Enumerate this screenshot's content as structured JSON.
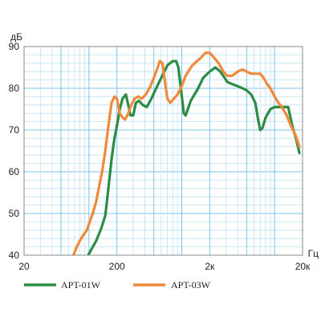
{
  "chart_data": {
    "type": "line",
    "y_unit": "дБ",
    "x_unit": "Гц",
    "xscale": "log",
    "xlim": [
      20,
      20000
    ],
    "ylim": [
      40,
      90
    ],
    "grid": true,
    "x_ticks": [
      {
        "value": 20,
        "label": "20"
      },
      {
        "value": 200,
        "label": "200"
      },
      {
        "value": 2000,
        "label": "2к"
      },
      {
        "value": 20000,
        "label": "20к"
      }
    ],
    "y_ticks": [
      {
        "value": 40,
        "label": "40"
      },
      {
        "value": 50,
        "label": "50"
      },
      {
        "value": 60,
        "label": "60"
      },
      {
        "value": 70,
        "label": "70"
      },
      {
        "value": 80,
        "label": "80"
      },
      {
        "value": 90,
        "label": "90"
      }
    ],
    "legend_position": "bottom",
    "series": [
      {
        "name": "APT-01W",
        "color": "#2e8b45",
        "points": [
          [
            98,
            40
          ],
          [
            107,
            41.5
          ],
          [
            120,
            43.5
          ],
          [
            136,
            46.5
          ],
          [
            150,
            49.5
          ],
          [
            160,
            55
          ],
          [
            175,
            63
          ],
          [
            188,
            68
          ],
          [
            200,
            71
          ],
          [
            215,
            75
          ],
          [
            230,
            77.5
          ],
          [
            250,
            78.5
          ],
          [
            265,
            76
          ],
          [
            280,
            73.5
          ],
          [
            300,
            73.5
          ],
          [
            320,
            76.5
          ],
          [
            345,
            77
          ],
          [
            380,
            76
          ],
          [
            420,
            75.5
          ],
          [
            470,
            77.5
          ],
          [
            530,
            80
          ],
          [
            600,
            82.5
          ],
          [
            700,
            85.5
          ],
          [
            800,
            86.5
          ],
          [
            870,
            86.5
          ],
          [
            920,
            85
          ],
          [
            990,
            79
          ],
          [
            1050,
            74
          ],
          [
            1100,
            73.5
          ],
          [
            1250,
            77
          ],
          [
            1500,
            80
          ],
          [
            1700,
            82.5
          ],
          [
            2000,
            84
          ],
          [
            2300,
            85
          ],
          [
            2600,
            84
          ],
          [
            2800,
            83
          ],
          [
            3100,
            81.5
          ],
          [
            3500,
            81
          ],
          [
            4000,
            80.5
          ],
          [
            4500,
            80
          ],
          [
            5000,
            79.5
          ],
          [
            5600,
            78.5
          ],
          [
            6200,
            76.5
          ],
          [
            6700,
            72
          ],
          [
            7000,
            70
          ],
          [
            7400,
            70.5
          ],
          [
            8000,
            73
          ],
          [
            9000,
            75
          ],
          [
            10000,
            75.5
          ],
          [
            11500,
            75.5
          ],
          [
            13000,
            75.5
          ],
          [
            14000,
            75.5
          ],
          [
            15500,
            71
          ],
          [
            17000,
            68
          ],
          [
            18500,
            64.5
          ]
        ]
      },
      {
        "name": "APT-03W",
        "color": "#f08a3a",
        "points": [
          [
            68,
            40
          ],
          [
            74,
            42
          ],
          [
            80,
            43.5
          ],
          [
            88,
            45
          ],
          [
            95,
            46
          ],
          [
            102,
            48
          ],
          [
            110,
            50
          ],
          [
            120,
            53
          ],
          [
            130,
            57
          ],
          [
            140,
            60.5
          ],
          [
            150,
            65
          ],
          [
            162,
            71
          ],
          [
            175,
            76.5
          ],
          [
            188,
            78
          ],
          [
            200,
            77.5
          ],
          [
            215,
            74
          ],
          [
            230,
            73
          ],
          [
            245,
            72.5
          ],
          [
            265,
            74
          ],
          [
            285,
            76
          ],
          [
            310,
            77.5
          ],
          [
            340,
            78
          ],
          [
            370,
            77.5
          ],
          [
            410,
            78.5
          ],
          [
            460,
            80.5
          ],
          [
            520,
            83.5
          ],
          [
            580,
            86.5
          ],
          [
            620,
            86
          ],
          [
            660,
            81.5
          ],
          [
            700,
            77.5
          ],
          [
            750,
            76.5
          ],
          [
            820,
            77.5
          ],
          [
            900,
            78.5
          ],
          [
            1000,
            80.5
          ],
          [
            1100,
            83
          ],
          [
            1300,
            85.5
          ],
          [
            1550,
            87
          ],
          [
            1800,
            88.5
          ],
          [
            2000,
            88.5
          ],
          [
            2200,
            87.5
          ],
          [
            2500,
            86
          ],
          [
            2800,
            84
          ],
          [
            3100,
            83
          ],
          [
            3500,
            83
          ],
          [
            4000,
            84
          ],
          [
            4500,
            84.5
          ],
          [
            5000,
            84
          ],
          [
            5600,
            83.5
          ],
          [
            6300,
            83.5
          ],
          [
            7000,
            83.5
          ],
          [
            7600,
            82.5
          ],
          [
            8300,
            81
          ],
          [
            9000,
            80
          ],
          [
            10000,
            78
          ],
          [
            11000,
            76.5
          ],
          [
            12000,
            75.5
          ],
          [
            13500,
            73.5
          ],
          [
            15000,
            71
          ],
          [
            17000,
            68.5
          ],
          [
            18500,
            66
          ]
        ]
      }
    ]
  }
}
